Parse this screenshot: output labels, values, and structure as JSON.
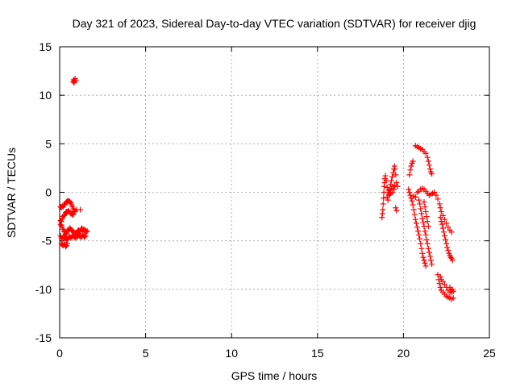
{
  "chart_data": {
    "type": "scatter",
    "title": "Day 321 of 2023, Sidereal Day-to-day VTEC variation (SDTVAR) for receiver djig",
    "xlabel": "GPS time / hours",
    "ylabel": "SDTVAR / TECUs",
    "xlim": [
      0,
      25
    ],
    "ylim": [
      -15,
      15
    ],
    "xticks": [
      "0",
      "5",
      "10",
      "15",
      "20",
      "25"
    ],
    "yticks": [
      "-15",
      "-10",
      "-5",
      "0",
      "5",
      "10",
      "15"
    ],
    "xtick_values": [
      0,
      5,
      10,
      15,
      20,
      25
    ],
    "ytick_values": [
      -15,
      -10,
      -5,
      0,
      5,
      10,
      15
    ],
    "grid": true,
    "marker": "plus",
    "series": [
      {
        "color": "#ff0000",
        "points": [
          [
            0.78,
            11.4
          ],
          [
            0.82,
            11.6
          ],
          [
            0.86,
            11.5
          ],
          [
            0.9,
            11.7
          ],
          [
            0.95,
            11.5
          ],
          [
            0.84,
            11.3
          ],
          [
            0.05,
            -1.5
          ],
          [
            0.1,
            -1.6
          ],
          [
            0.15,
            -1.4
          ],
          [
            0.2,
            -1.5
          ],
          [
            0.25,
            -1.3
          ],
          [
            0.3,
            -1.3
          ],
          [
            0.35,
            -1.1
          ],
          [
            0.4,
            -1.0
          ],
          [
            0.45,
            -0.9
          ],
          [
            0.5,
            -0.9
          ],
          [
            0.55,
            -0.9
          ],
          [
            0.6,
            -1.0
          ],
          [
            0.65,
            -1.1
          ],
          [
            0.7,
            -1.3
          ],
          [
            0.75,
            -1.5
          ],
          [
            0.8,
            -1.7
          ],
          [
            0.85,
            -1.9
          ],
          [
            0.9,
            -2.0
          ],
          [
            1.0,
            -1.8
          ],
          [
            1.2,
            -1.8
          ],
          [
            0.05,
            -2.9
          ],
          [
            0.1,
            -3.0
          ],
          [
            0.15,
            -2.7
          ],
          [
            0.2,
            -2.5
          ],
          [
            0.25,
            -2.4
          ],
          [
            0.3,
            -2.3
          ],
          [
            0.35,
            -2.1
          ],
          [
            0.4,
            -2.0
          ],
          [
            0.45,
            -2.0
          ],
          [
            0.5,
            -1.9
          ],
          [
            0.55,
            -2.0
          ],
          [
            0.6,
            -2.1
          ],
          [
            0.65,
            -2.2
          ],
          [
            0.7,
            -2.2
          ],
          [
            0.75,
            -2.3
          ],
          [
            0.8,
            -2.3
          ],
          [
            0.05,
            -3.3
          ],
          [
            0.1,
            -3.4
          ],
          [
            0.15,
            -3.6
          ],
          [
            0.2,
            -3.8
          ],
          [
            0.25,
            -4.0
          ],
          [
            0.3,
            -4.1
          ],
          [
            0.35,
            -4.3
          ],
          [
            0.4,
            -4.2
          ],
          [
            0.45,
            -4.0
          ],
          [
            0.5,
            -3.9
          ],
          [
            0.55,
            -3.8
          ],
          [
            0.6,
            -3.7
          ],
          [
            0.65,
            -3.8
          ],
          [
            0.7,
            -3.9
          ],
          [
            0.75,
            -4.0
          ],
          [
            0.8,
            -4.1
          ],
          [
            0.85,
            -4.2
          ],
          [
            0.9,
            -4.2
          ],
          [
            0.95,
            -4.3
          ],
          [
            1.0,
            -4.2
          ],
          [
            1.05,
            -4.0
          ],
          [
            1.1,
            -3.9
          ],
          [
            1.15,
            -4.1
          ],
          [
            1.2,
            -4.0
          ],
          [
            1.25,
            -3.8
          ],
          [
            1.3,
            -3.7
          ],
          [
            1.35,
            -3.9
          ],
          [
            1.4,
            -3.8
          ],
          [
            1.45,
            -4.0
          ],
          [
            1.5,
            -3.9
          ],
          [
            1.55,
            -4.1
          ],
          [
            1.6,
            -4.0
          ],
          [
            0.05,
            -4.5
          ],
          [
            0.1,
            -4.7
          ],
          [
            0.15,
            -4.8
          ],
          [
            0.2,
            -4.6
          ],
          [
            0.25,
            -4.5
          ],
          [
            0.3,
            -4.6
          ],
          [
            0.35,
            -4.8
          ],
          [
            0.4,
            -4.9
          ],
          [
            0.45,
            -4.8
          ],
          [
            0.5,
            -4.7
          ],
          [
            0.55,
            -4.6
          ],
          [
            0.6,
            -4.6
          ],
          [
            0.65,
            -4.7
          ],
          [
            0.7,
            -4.6
          ],
          [
            0.75,
            -4.5
          ],
          [
            0.8,
            -4.5
          ],
          [
            0.85,
            -4.6
          ],
          [
            0.9,
            -4.7
          ],
          [
            0.95,
            -4.6
          ],
          [
            1.0,
            -4.5
          ],
          [
            1.05,
            -4.6
          ],
          [
            1.1,
            -4.4
          ],
          [
            1.15,
            -4.5
          ],
          [
            1.2,
            -4.6
          ],
          [
            1.25,
            -4.5
          ],
          [
            1.3,
            -4.6
          ],
          [
            1.35,
            -4.4
          ],
          [
            1.4,
            -4.5
          ],
          [
            1.45,
            -4.6
          ],
          [
            1.5,
            -4.5
          ],
          [
            0.1,
            -5.3
          ],
          [
            0.15,
            -5.4
          ],
          [
            0.2,
            -5.5
          ],
          [
            0.25,
            -5.3
          ],
          [
            0.3,
            -5.4
          ],
          [
            0.35,
            -5.6
          ],
          [
            0.4,
            -5.5
          ],
          [
            0.45,
            -5.3
          ],
          [
            18.75,
            -2.6
          ],
          [
            18.78,
            -2.2
          ],
          [
            18.8,
            -1.8
          ],
          [
            18.82,
            -1.2
          ],
          [
            18.84,
            -0.6
          ],
          [
            18.86,
            0.0
          ],
          [
            18.88,
            0.6
          ],
          [
            18.9,
            1.0
          ],
          [
            18.92,
            1.4
          ],
          [
            18.95,
            1.7
          ],
          [
            19.0,
            1.2
          ],
          [
            19.05,
            0.5
          ],
          [
            19.1,
            0.0
          ],
          [
            19.15,
            -0.3
          ],
          [
            19.2,
            0.3
          ],
          [
            19.25,
            0.8
          ],
          [
            19.3,
            1.2
          ],
          [
            19.35,
            1.6
          ],
          [
            19.4,
            2.0
          ],
          [
            19.45,
            2.4
          ],
          [
            19.48,
            2.7
          ],
          [
            19.5,
            2.4
          ],
          [
            19.55,
            1.8
          ],
          [
            19.6,
            1.0
          ],
          [
            19.65,
            0.6
          ],
          [
            19.05,
            -0.5
          ],
          [
            19.1,
            -0.8
          ],
          [
            19.15,
            0.2
          ],
          [
            19.2,
            -0.2
          ],
          [
            19.25,
            -0.1
          ],
          [
            19.3,
            0.4
          ],
          [
            19.35,
            0.0
          ],
          [
            19.4,
            0.6
          ],
          [
            19.45,
            0.3
          ],
          [
            19.5,
            0.7
          ],
          [
            19.55,
            -1.6
          ],
          [
            19.6,
            -1.9
          ],
          [
            20.35,
            1.8
          ],
          [
            20.4,
            2.3
          ],
          [
            20.45,
            2.7
          ],
          [
            20.5,
            3.0
          ],
          [
            20.55,
            3.2
          ],
          [
            20.7,
            4.8
          ],
          [
            20.8,
            4.7
          ],
          [
            20.9,
            4.6
          ],
          [
            21.0,
            4.5
          ],
          [
            21.1,
            4.4
          ],
          [
            21.2,
            4.2
          ],
          [
            21.3,
            4.0
          ],
          [
            21.4,
            3.6
          ],
          [
            21.45,
            3.2
          ],
          [
            21.5,
            2.8
          ],
          [
            21.55,
            2.4
          ],
          [
            21.6,
            2.1
          ],
          [
            21.65,
            1.9
          ],
          [
            20.3,
            0.3
          ],
          [
            20.35,
            0.0
          ],
          [
            20.4,
            -0.3
          ],
          [
            20.45,
            -0.6
          ],
          [
            20.5,
            -0.9
          ],
          [
            20.55,
            -1.3
          ],
          [
            20.6,
            -1.8
          ],
          [
            20.65,
            -2.3
          ],
          [
            20.7,
            -2.8
          ],
          [
            20.75,
            -3.2
          ],
          [
            20.8,
            -3.6
          ],
          [
            20.85,
            -4.0
          ],
          [
            20.9,
            -4.4
          ],
          [
            20.95,
            -4.8
          ],
          [
            21.0,
            -5.3
          ],
          [
            21.05,
            -5.8
          ],
          [
            21.1,
            -6.3
          ],
          [
            21.15,
            -6.7
          ],
          [
            21.2,
            -7.0
          ],
          [
            21.25,
            -7.3
          ],
          [
            21.3,
            -7.6
          ],
          [
            20.6,
            -0.4
          ],
          [
            20.7,
            -0.5
          ],
          [
            20.8,
            0.0
          ],
          [
            20.9,
            0.1
          ],
          [
            21.0,
            0.3
          ],
          [
            21.1,
            0.4
          ],
          [
            21.2,
            0.3
          ],
          [
            21.3,
            0.1
          ],
          [
            21.4,
            -0.1
          ],
          [
            21.5,
            -0.3
          ],
          [
            21.6,
            -0.2
          ],
          [
            21.7,
            -0.1
          ],
          [
            21.8,
            0.0
          ],
          [
            20.9,
            -0.8
          ],
          [
            20.95,
            -1.2
          ],
          [
            21.0,
            -1.7
          ],
          [
            21.05,
            -2.2
          ],
          [
            21.1,
            -2.7
          ],
          [
            21.15,
            -3.1
          ],
          [
            21.2,
            -3.5
          ],
          [
            21.25,
            -4.0
          ],
          [
            21.3,
            -4.4
          ],
          [
            21.35,
            -4.9
          ],
          [
            21.4,
            -5.3
          ],
          [
            21.45,
            -5.8
          ],
          [
            21.5,
            -6.2
          ],
          [
            21.55,
            -6.6
          ],
          [
            21.6,
            -7.0
          ],
          [
            21.65,
            -7.4
          ],
          [
            21.2,
            -1.0
          ],
          [
            21.25,
            -1.5
          ],
          [
            21.3,
            -2.0
          ],
          [
            21.35,
            -2.5
          ],
          [
            21.4,
            -3.0
          ],
          [
            21.45,
            -3.5
          ],
          [
            22.0,
            -8.5
          ],
          [
            22.05,
            -9.0
          ],
          [
            22.1,
            -9.4
          ],
          [
            22.15,
            -9.8
          ],
          [
            22.2,
            -10.1
          ],
          [
            22.3,
            -10.3
          ],
          [
            22.4,
            -10.5
          ],
          [
            22.5,
            -10.7
          ],
          [
            22.6,
            -10.8
          ],
          [
            22.7,
            -10.9
          ],
          [
            22.8,
            -11.0
          ],
          [
            22.9,
            -10.9
          ],
          [
            22.15,
            -8.7
          ],
          [
            22.2,
            -9.0
          ],
          [
            22.3,
            -9.2
          ],
          [
            22.4,
            -9.5
          ],
          [
            22.5,
            -9.8
          ],
          [
            22.6,
            -10.1
          ],
          [
            22.7,
            -10.3
          ],
          [
            22.7,
            -9.8
          ],
          [
            22.75,
            -10.1
          ],
          [
            22.8,
            -10.3
          ],
          [
            22.85,
            -10.0
          ],
          [
            22.9,
            -10.2
          ],
          [
            21.9,
            -0.3
          ],
          [
            22.0,
            -0.7
          ],
          [
            22.1,
            -1.2
          ],
          [
            22.15,
            -1.6
          ],
          [
            22.2,
            -2.0
          ],
          [
            22.3,
            -2.4
          ],
          [
            22.4,
            -2.8
          ],
          [
            22.5,
            -3.2
          ],
          [
            22.6,
            -3.6
          ],
          [
            22.7,
            -3.9
          ],
          [
            22.8,
            -4.1
          ],
          [
            22.15,
            -2.6
          ],
          [
            22.2,
            -3.0
          ],
          [
            22.25,
            -3.3
          ],
          [
            22.3,
            -3.7
          ],
          [
            22.35,
            -4.1
          ],
          [
            22.4,
            -4.5
          ],
          [
            22.45,
            -4.9
          ],
          [
            22.5,
            -5.3
          ],
          [
            22.55,
            -5.7
          ],
          [
            22.6,
            -6.0
          ],
          [
            22.65,
            -6.3
          ],
          [
            22.7,
            -6.5
          ],
          [
            22.75,
            -6.7
          ],
          [
            22.8,
            -6.8
          ],
          [
            22.85,
            -7.0
          ]
        ]
      }
    ]
  }
}
